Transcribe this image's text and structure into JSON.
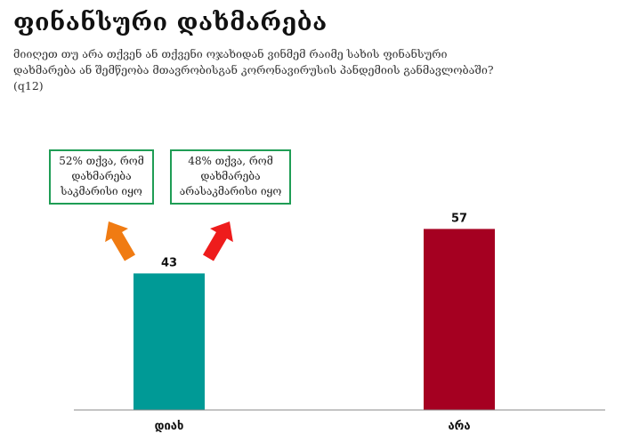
{
  "page": {
    "title": "ფინანსური დახმარება",
    "subtitle": "მიიღეთ თუ არა თქვენ ან თქვენი ოჯახიდან ვინმემ რაიმე სახის ფინანსური დახმარება ან შემწეობა მთავრობისგან კორონავირუსის პანდემიის განმავლობაში? (q12)"
  },
  "callouts": [
    {
      "text": "52% თქვა, რომ დახმარება საკმარისი იყო",
      "arrow_color": "#f07b12",
      "arrow_icon": "arrow-up-left-icon"
    },
    {
      "text": "48% თქვა, რომ დახმარება არასაკმარისი იყო",
      "arrow_color": "#ee1c1c",
      "arrow_icon": "arrow-up-right-icon"
    }
  ],
  "chart_data": {
    "type": "bar",
    "categories": [
      "დიახ",
      "არა"
    ],
    "values": [
      43,
      57
    ],
    "colors": [
      "#009a96",
      "#a50021"
    ],
    "ylim": [
      0,
      70
    ],
    "grid": false,
    "legend": "none"
  }
}
